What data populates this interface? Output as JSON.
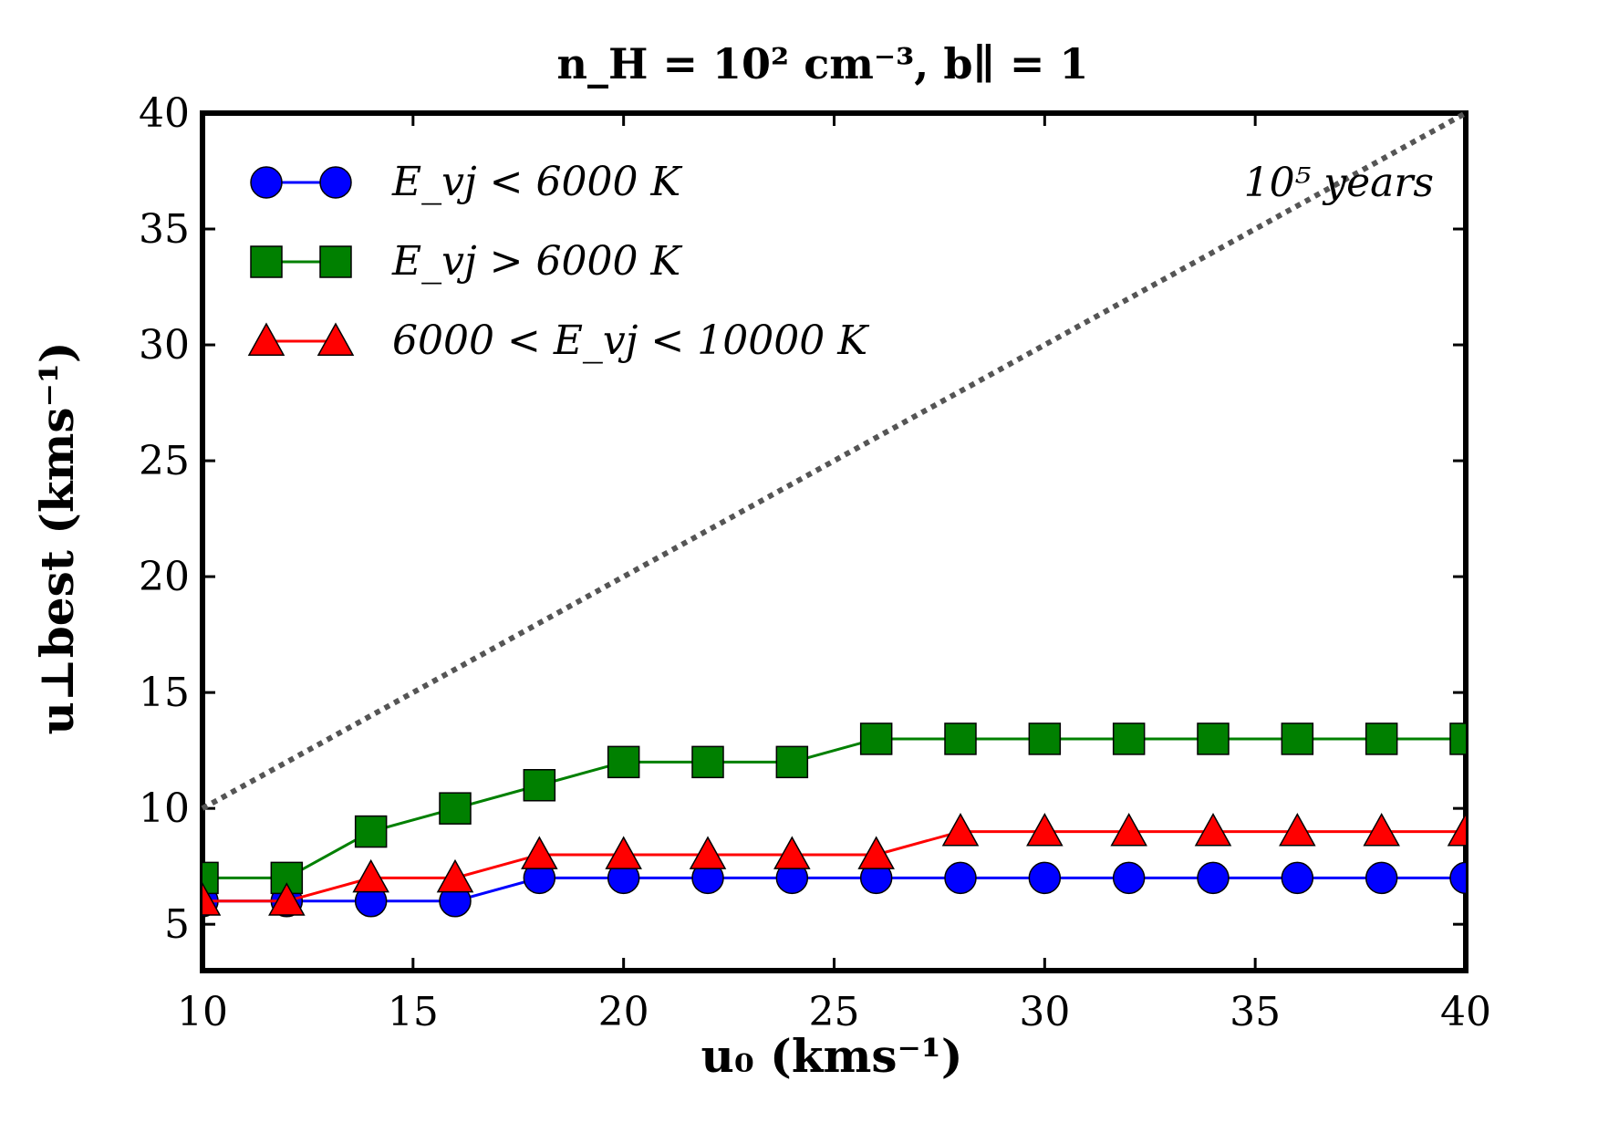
{
  "chart_data": {
    "type": "line",
    "title": "n_H = 10² cm⁻³, b∥ = 1",
    "xlabel": "u₀ (kms⁻¹)",
    "ylabel": "u⊥best (kms⁻¹)",
    "xlim": [
      10,
      40
    ],
    "ylim": [
      3,
      40
    ],
    "x_ticks": [
      10,
      15,
      20,
      25,
      30,
      35,
      40
    ],
    "y_ticks": [
      5,
      10,
      15,
      20,
      25,
      30,
      35,
      40
    ],
    "grid": false,
    "legend_position": "top-left",
    "x": [
      10,
      12,
      14,
      16,
      18,
      20,
      22,
      24,
      26,
      28,
      30,
      32,
      34,
      36,
      38,
      40
    ],
    "series": [
      {
        "name": "E_vj < 6000 K",
        "color": "#0000ff",
        "marker": "circle",
        "values": [
          6,
          6,
          6,
          6,
          7,
          7,
          7,
          7,
          7,
          7,
          7,
          7,
          7,
          7,
          7,
          7
        ]
      },
      {
        "name": "E_vj > 6000 K",
        "color": "#008000",
        "marker": "square",
        "values": [
          7,
          7,
          9,
          10,
          11,
          12,
          12,
          12,
          13,
          13,
          13,
          13,
          13,
          13,
          13,
          13
        ]
      },
      {
        "name": "6000 < E_vj < 10000 K",
        "color": "#ff0000",
        "marker": "triangle",
        "values": [
          6,
          6,
          7,
          7,
          8,
          8,
          8,
          8,
          8,
          9,
          9,
          9,
          9,
          9,
          9,
          9
        ]
      }
    ],
    "reference_line": {
      "label": "10⁵ years",
      "x": [
        10,
        40
      ],
      "y": [
        10,
        40
      ],
      "style": "dotted",
      "color": "#555555"
    }
  }
}
